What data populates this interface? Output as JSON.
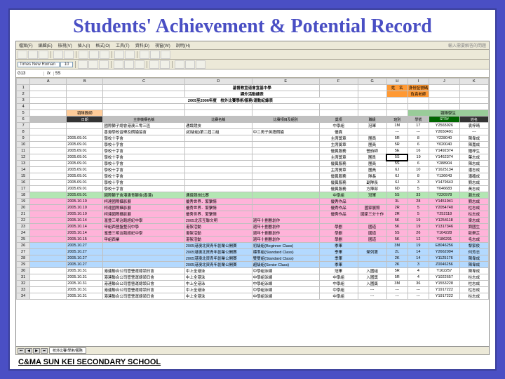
{
  "title": "Students' Achievement & Potential Record",
  "footer": "C&MA SUN KEI SECONDARY SCHOOL",
  "menu": [
    "檔案(F)",
    "編輯(E)",
    "檢視(V)",
    "插入(I)",
    "格式(O)",
    "工具(T)",
    "資料(D)",
    "視窗(W)",
    "說明(H)"
  ],
  "searchHint": "輸入需要解答的問題",
  "font": "Times New Roman",
  "fontSize": "10",
  "cellRef": "G13",
  "cellVal": "5S",
  "cols": [
    "",
    "A",
    "B",
    "C",
    "D",
    "E",
    "F",
    "G",
    "H",
    "I",
    "J",
    "K"
  ],
  "schoolName": "基督教宣道會宣基中學",
  "sub1": "課外活動總表",
  "sub2": "2005至2006年度　校外比賽學術/服務/運動紀錄表",
  "orangeHdr": [
    "姓　名",
    "身份証號碼"
  ],
  "orangeVal": [
    "",
    "負責老師"
  ],
  "filterRow": [
    "日期",
    "主辦機構名稱",
    "比賽名稱",
    "比賽項目及組別",
    "獎項",
    "職級",
    "班別",
    "學號",
    "班別",
    "STR#",
    "姓名"
  ],
  "rows": [
    {
      "r": 7,
      "b": "",
      "c": "國際獅子總會港澳三零三區",
      "d": "通識競技",
      "e": "",
      "f": "中學組",
      "g": "冠軍",
      "h": "1M",
      "i": "17",
      "j": "Y2565926",
      "k": "袁梓晴"
    },
    {
      "r": 8,
      "b": "",
      "c": "香港學校音樂及朗誦協會",
      "d": "(初級組)第二屆二組",
      "e": "中二男子英語朗誦",
      "f": "優異",
      "g": "",
      "h": "---",
      "i": "---",
      "j": "Y2650491",
      "k": "---"
    },
    {
      "r": 9,
      "b": "2005.09.01",
      "c": "學校十字會",
      "d": "",
      "e": "",
      "f": "主席獎章",
      "g": "團員",
      "h": "5R",
      "i": "8",
      "j": "Y228040",
      "k": "陳韋成"
    },
    {
      "r": 10,
      "b": "2005.09.01",
      "c": "學校十字會",
      "d": "",
      "e": "",
      "f": "主席獎章",
      "g": "團員",
      "h": "5R",
      "i": "6",
      "j": "Y020040",
      "k": "陳嘉成"
    },
    {
      "r": 11,
      "b": "2005.09.01",
      "c": "學校十字會",
      "d": "",
      "e": "",
      "f": "優異服務",
      "g": "營詩師",
      "h": "5E",
      "i": "16",
      "j": "Y1492374",
      "k": "鍾梓生"
    },
    {
      "r": 12,
      "b": "2005.09.01",
      "c": "學校十字會",
      "d": "",
      "e": "",
      "f": "主席獎章",
      "g": "團員",
      "h": "5S",
      "i": "19",
      "j": "Y1462374",
      "k": "葉志成",
      "sel": true
    },
    {
      "r": 13,
      "b": "2005.09.01",
      "c": "學校十字會",
      "d": "",
      "e": "",
      "f": "優異服務",
      "g": "團員",
      "h": "5S",
      "i": "6",
      "j": "Y288904",
      "k": "陳志成"
    },
    {
      "r": 14,
      "b": "2005.09.01",
      "c": "學校十字會",
      "d": "",
      "e": "",
      "f": "主席獎章",
      "g": "團員",
      "h": "6J",
      "i": "10",
      "j": "Y1625134",
      "k": "潘志成"
    },
    {
      "r": 15,
      "b": "2005.09.01",
      "c": "學校十字會",
      "d": "",
      "e": "",
      "f": "優異服務",
      "g": "隊長",
      "h": "6J",
      "i": "8",
      "j": "Y136643",
      "k": "潘確成"
    },
    {
      "r": 16,
      "b": "2005.09.01",
      "c": "學校十字會",
      "d": "",
      "e": "",
      "f": "優異服務",
      "g": "副隊長",
      "h": "6J",
      "i": "3",
      "j": "Y1479643",
      "k": "劉志成"
    },
    {
      "r": 17,
      "b": "2005.09.01",
      "c": "學校十字會",
      "d": "",
      "e": "",
      "f": "優異服務",
      "g": "方陣部",
      "h": "6D",
      "i": "5",
      "j": "Y046683",
      "k": "黃志成"
    },
    {
      "r": 18,
      "b": "2005.09.01",
      "c": "國際獅子會港澳青獅會(香港)",
      "d": "通識競技比賽",
      "e": "",
      "f": "中學組",
      "g": "冠軍",
      "h": "5S",
      "i": "33",
      "j": "Y220978",
      "k": "趙志成",
      "cls": "green"
    },
    {
      "r": 19,
      "b": "2005.10.10",
      "c": "柯達國際攝影展",
      "d": "優秀世界．緊繫情",
      "e": "",
      "f": "優秀作品",
      "g": "",
      "h": "3L",
      "i": "28",
      "j": "Y1451941",
      "k": "劉志成",
      "cls": "pink"
    },
    {
      "r": 20,
      "b": "2005.10.10",
      "c": "柯達國際攝影展",
      "d": "優秀世界．緊繫情",
      "e": "",
      "f": "優秀作品",
      "g": "國家展照",
      "h": "2R",
      "i": "5",
      "j": "Y2054740",
      "k": "柱志成",
      "cls": "pink"
    },
    {
      "r": 21,
      "b": "2005.10.10",
      "c": "柯達國際攝影展",
      "d": "優秀世界．緊繫情",
      "e": "",
      "f": "優秀作品",
      "g": "國家三分十作",
      "h": "2R",
      "i": "5",
      "j": "Y252118",
      "k": "柱志成",
      "cls": "pink"
    },
    {
      "r": 22,
      "b": "2005.10.14",
      "c": "滙豊三明治跑經紀中學",
      "d": "2005北京互聯文明",
      "e": "週年十劃劃創作",
      "f": "",
      "g": "",
      "h": "5K",
      "i": "19",
      "j": "Y1254118",
      "k": "梁志成",
      "cls": "pink"
    },
    {
      "r": 23,
      "b": "2005.10.14",
      "c": "甲組西營盤整況中學",
      "d": "港絮活動",
      "e": "週年十劃劃創作",
      "f": "學劃",
      "g": "國道",
      "h": "5K",
      "i": "19",
      "j": "Y1317346",
      "k": "劉國生",
      "cls": "pink"
    },
    {
      "r": 24,
      "b": "2005.10.14",
      "c": "滙豊三明治跑經紀中學",
      "d": "港絮活動",
      "e": "週年十劃劃創作",
      "f": "學劃",
      "g": "國道",
      "h": "5S",
      "i": "26",
      "j": "Y104228",
      "k": "歐樂芷",
      "cls": "pink"
    },
    {
      "r": 25,
      "b": "2005.10.15",
      "c": "甲組西業",
      "d": "港絮活動",
      "e": "週年十劃劃創作",
      "f": "學劃",
      "g": "國道",
      "h": "5K",
      "i": "12",
      "j": "Y186291",
      "k": "毛志成",
      "cls": "pink"
    },
    {
      "r": 26,
      "b": "2005.10.27",
      "c": "",
      "d": "2005港澳北資青年創業公開賽",
      "e": "初級組(Beginner Class)",
      "f": "季軍",
      "g": "",
      "h": "3M",
      "i": "19",
      "j": "E8046256",
      "k": "黎家俊",
      "cls": "blue"
    },
    {
      "r": 27,
      "b": "2005.10.27",
      "c": "",
      "d": "2005港澳北資青年創業公開賽",
      "e": "標準組(Standard Class)",
      "f": "季軍",
      "g": "榮列第",
      "h": "2L",
      "i": "14",
      "j": "Y2662094",
      "k": "何芳志",
      "cls": "blue"
    },
    {
      "r": 28,
      "b": "2005.10.27",
      "c": "",
      "d": "2005港澳北資青年創業公開賽",
      "e": "雙雙組(Standard Class)",
      "f": "季軍",
      "g": "",
      "h": "2K",
      "i": "14",
      "j": "Y1125176",
      "k": "陳韋成",
      "cls": "blue"
    },
    {
      "r": 29,
      "b": "2005.10.27",
      "c": "",
      "d": "2005港澳北資青年創業公開賽",
      "e": "超級組(Senior Class)",
      "f": "季軍",
      "g": "",
      "h": "2K",
      "i": "3",
      "j": "Z0046256",
      "k": "陳韋成",
      "cls": "blue"
    },
    {
      "r": 30,
      "b": "2005.10.31",
      "c": "港連聯合公司管營運總領日會",
      "d": "中上全港泳",
      "e": "中學組泳線",
      "f": "冠軍",
      "g": "入圍組",
      "h": "5R",
      "i": "4",
      "j": "Y162257",
      "k": "陳韋成"
    },
    {
      "r": 31,
      "b": "2005.10.31",
      "c": "港連聯合公司管營運總領日會",
      "d": "中上全港泳",
      "e": "中學組泳線",
      "f": "中學組",
      "g": "入圍獎",
      "h": "5R",
      "i": "4",
      "j": "Y1022657",
      "k": "柱志成"
    },
    {
      "r": 32,
      "b": "2005.10.31",
      "c": "港連聯合公司管營運總領日會",
      "d": "中上全港泳",
      "e": "中學組泳線",
      "f": "中學組",
      "g": "入圍獎",
      "h": "3M",
      "i": "36",
      "j": "Y1553228",
      "k": "柱志成"
    },
    {
      "r": 33,
      "b": "2005.10.31",
      "c": "港連聯合公司管營運總領日會",
      "d": "中上全港泳",
      "e": "中學組泳線",
      "f": "中學組",
      "g": "---",
      "h": "---",
      "i": "---",
      "j": "Y1917222",
      "k": "柱志成"
    },
    {
      "r": 34,
      "b": "2005.10.31",
      "c": "港連聯合公司管營運總領日會",
      "d": "中上全港泳",
      "e": "中學組泳線",
      "f": "中學組",
      "g": "---",
      "h": "---",
      "i": "---",
      "j": "Y1917222",
      "k": "柱志成"
    }
  ],
  "sheetTab": "校外比賽/學術/服務"
}
